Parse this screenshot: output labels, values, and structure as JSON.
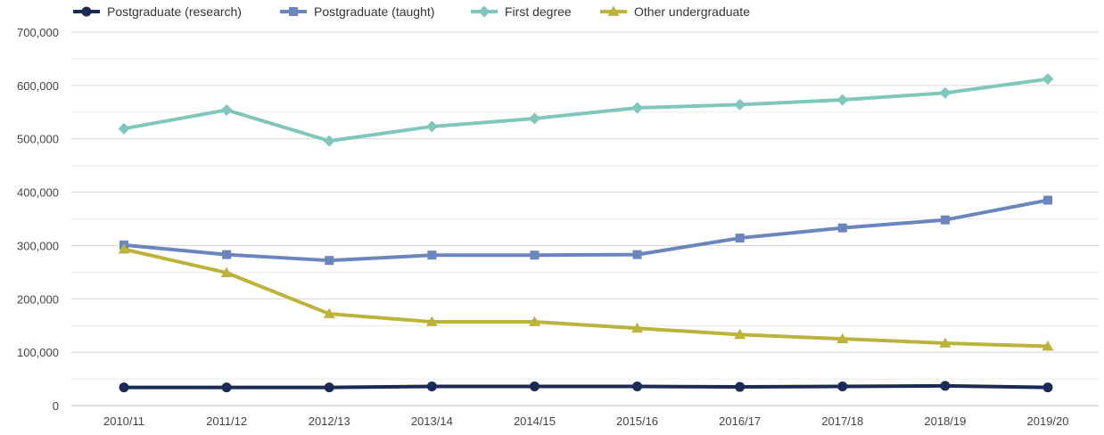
{
  "chart_data": {
    "type": "line",
    "categories": [
      "2010/11",
      "2011/12",
      "2012/13",
      "2013/14",
      "2014/15",
      "2015/16",
      "2016/17",
      "2017/18",
      "2018/19",
      "2019/20"
    ],
    "series": [
      {
        "name": "Postgraduate (research)",
        "color": "#1a2b55",
        "marker": "circle",
        "values": [
          34000,
          34000,
          34000,
          36000,
          36000,
          36000,
          35000,
          36000,
          37000,
          34000
        ]
      },
      {
        "name": "Postgraduate (taught)",
        "color": "#6b86bd",
        "marker": "square",
        "values": [
          301000,
          283000,
          272000,
          282000,
          282000,
          283000,
          314000,
          333000,
          348000,
          385000
        ]
      },
      {
        "name": "First degree",
        "color": "#7fc7bc",
        "marker": "diamond",
        "values": [
          519000,
          554000,
          496000,
          523000,
          538000,
          558000,
          564000,
          573000,
          586000,
          612000
        ]
      },
      {
        "name": "Other undergraduate",
        "color": "#bcb43a",
        "marker": "triangle",
        "values": [
          293000,
          249000,
          172000,
          157000,
          157000,
          145000,
          133000,
          125000,
          117000,
          111000
        ]
      }
    ],
    "yticks": [
      "0",
      "100,000",
      "200,000",
      "300,000",
      "400,000",
      "500,000",
      "600,000",
      "700,000"
    ],
    "ylim": [
      0,
      700000
    ],
    "grid": true,
    "legend_position": "top-left"
  }
}
